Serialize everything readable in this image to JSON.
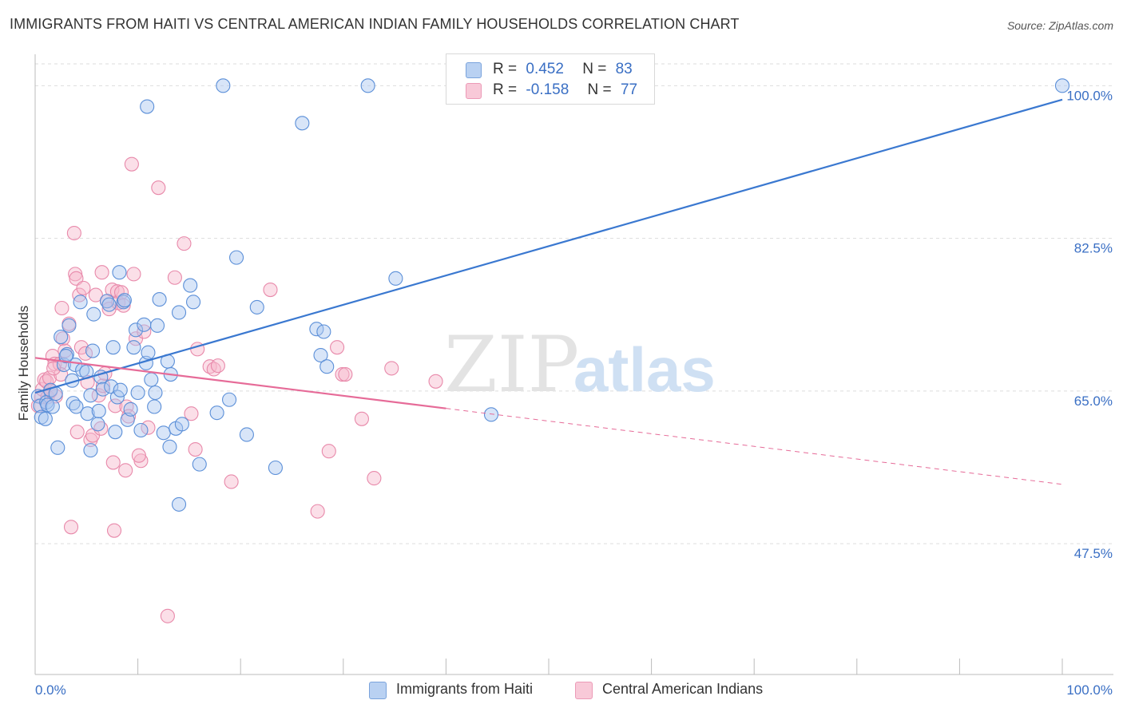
{
  "title": "IMMIGRANTS FROM HAITI VS CENTRAL AMERICAN INDIAN FAMILY HOUSEHOLDS CORRELATION CHART",
  "source": "Source: ZipAtlas.com",
  "watermark": {
    "zip": "ZIP",
    "atlas": "atlas"
  },
  "colors": {
    "blue": "#3a78d0",
    "blue_fill": "#a9c6ef",
    "pink": "#e66b98",
    "pink_fill": "#f6b9cd",
    "grid": "#dddddd",
    "tick_label": "#3a6fc4"
  },
  "stats": {
    "blue": {
      "r_label": "R =",
      "r_value": "0.452",
      "n_label": "N =",
      "n_value": "83"
    },
    "pink": {
      "r_label": "R =",
      "r_value": "-0.158",
      "n_label": "N =",
      "n_value": "77"
    }
  },
  "legend": {
    "blue": "Immigrants from Haiti",
    "pink": "Central American Indians"
  },
  "chart_data": {
    "type": "scatter",
    "title": "IMMIGRANTS FROM HAITI VS CENTRAL AMERICAN INDIAN FAMILY HOUSEHOLDS CORRELATION CHART",
    "xlabel": "",
    "ylabel": "Family Households",
    "xlim": [
      0,
      100
    ],
    "ylim": [
      32.5,
      102.5
    ],
    "x_tick_labels": {
      "left": "0.0%",
      "right": "100.0%"
    },
    "y_ticks": [
      {
        "value": 100,
        "label": "100.0%"
      },
      {
        "value": 82.5,
        "label": "82.5%"
      },
      {
        "value": 65,
        "label": "65.0%"
      },
      {
        "value": 47.5,
        "label": "47.5%"
      }
    ],
    "series": [
      {
        "name": "Immigrants from Haiti",
        "color": "#3a78d0",
        "R": 0.452,
        "N": 83,
        "trend": {
          "x": [
            0,
            100
          ],
          "y": [
            64.8,
            98.4
          ],
          "style": "solid"
        },
        "points": [
          [
            0.3,
            64.4
          ],
          [
            0.5,
            63.3
          ],
          [
            0.6,
            62.0
          ],
          [
            1.0,
            61.8
          ],
          [
            1.1,
            63.7
          ],
          [
            1.2,
            63.4
          ],
          [
            1.5,
            65.1
          ],
          [
            1.7,
            63.2
          ],
          [
            2.0,
            64.7
          ],
          [
            2.2,
            58.5
          ],
          [
            2.5,
            71.2
          ],
          [
            2.8,
            68.0
          ],
          [
            3.1,
            69.2
          ],
          [
            3.3,
            72.5
          ],
          [
            3.6,
            66.2
          ],
          [
            3.7,
            63.6
          ],
          [
            3.9,
            68.0
          ],
          [
            4.0,
            63.2
          ],
          [
            4.4,
            75.2
          ],
          [
            4.6,
            67.4
          ],
          [
            5.0,
            67.2
          ],
          [
            5.1,
            62.4
          ],
          [
            5.4,
            64.5
          ],
          [
            5.6,
            69.6
          ],
          [
            5.7,
            73.8
          ],
          [
            6.1,
            61.2
          ],
          [
            6.2,
            62.7
          ],
          [
            6.4,
            66.6
          ],
          [
            6.6,
            65.2
          ],
          [
            7.0,
            75.3
          ],
          [
            7.2,
            74.9
          ],
          [
            7.4,
            65.5
          ],
          [
            7.6,
            70.0
          ],
          [
            7.8,
            60.3
          ],
          [
            8.0,
            64.3
          ],
          [
            8.2,
            78.6
          ],
          [
            8.3,
            65.1
          ],
          [
            8.6,
            75.2
          ],
          [
            8.7,
            75.4
          ],
          [
            9.0,
            61.7
          ],
          [
            9.3,
            62.9
          ],
          [
            9.6,
            70.0
          ],
          [
            9.8,
            72.0
          ],
          [
            10.0,
            64.8
          ],
          [
            10.3,
            60.5
          ],
          [
            10.6,
            72.6
          ],
          [
            10.8,
            68.2
          ],
          [
            11.0,
            69.4
          ],
          [
            11.3,
            66.3
          ],
          [
            11.6,
            63.2
          ],
          [
            11.7,
            64.8
          ],
          [
            11.9,
            72.5
          ],
          [
            12.1,
            75.5
          ],
          [
            12.5,
            60.2
          ],
          [
            12.9,
            68.4
          ],
          [
            13.1,
            58.6
          ],
          [
            13.2,
            66.9
          ],
          [
            13.7,
            60.7
          ],
          [
            14.0,
            74.0
          ],
          [
            14.3,
            61.2
          ],
          [
            15.1,
            77.1
          ],
          [
            15.4,
            75.2
          ],
          [
            16.0,
            56.6
          ],
          [
            17.7,
            62.5
          ],
          [
            18.9,
            64.0
          ],
          [
            19.6,
            80.3
          ],
          [
            20.6,
            60.0
          ],
          [
            21.6,
            74.6
          ],
          [
            23.4,
            56.2
          ],
          [
            27.4,
            72.1
          ],
          [
            27.8,
            69.1
          ],
          [
            28.1,
            71.8
          ],
          [
            28.4,
            67.8
          ],
          [
            35.1,
            77.9
          ],
          [
            44.4,
            62.3
          ],
          [
            10.9,
            97.6
          ],
          [
            14.0,
            52.0
          ],
          [
            18.3,
            100.0
          ],
          [
            26.0,
            95.7
          ],
          [
            32.4,
            100.0
          ],
          [
            100.0,
            100.0
          ],
          [
            5.4,
            58.2
          ],
          [
            3.0,
            69.0
          ]
        ]
      },
      {
        "name": "Central American Indians",
        "color": "#e66b98",
        "R": -0.158,
        "N": 77,
        "trend": {
          "x": [
            0,
            100
          ],
          "y": [
            68.8,
            54.3
          ],
          "style": "solid-to-44-then-dashed"
        },
        "points": [
          [
            0.3,
            63.3
          ],
          [
            0.6,
            64.3
          ],
          [
            0.7,
            65.2
          ],
          [
            0.9,
            66.3
          ],
          [
            1.1,
            66.1
          ],
          [
            1.2,
            64.3
          ],
          [
            1.4,
            66.5
          ],
          [
            1.7,
            69.0
          ],
          [
            1.9,
            68.1
          ],
          [
            2.0,
            64.4
          ],
          [
            2.4,
            68.1
          ],
          [
            2.5,
            66.9
          ],
          [
            2.6,
            74.5
          ],
          [
            2.7,
            71.0
          ],
          [
            3.3,
            72.7
          ],
          [
            3.5,
            49.4
          ],
          [
            3.8,
            83.1
          ],
          [
            3.9,
            78.4
          ],
          [
            4.0,
            77.9
          ],
          [
            4.3,
            76.0
          ],
          [
            4.5,
            70.0
          ],
          [
            4.7,
            76.8
          ],
          [
            4.9,
            69.3
          ],
          [
            5.1,
            66.0
          ],
          [
            5.4,
            59.4
          ],
          [
            5.6,
            59.9
          ],
          [
            5.9,
            76.0
          ],
          [
            6.2,
            64.5
          ],
          [
            6.4,
            60.7
          ],
          [
            6.5,
            78.6
          ],
          [
            6.6,
            65.6
          ],
          [
            7.0,
            75.3
          ],
          [
            7.2,
            74.4
          ],
          [
            7.5,
            76.6
          ],
          [
            7.6,
            56.8
          ],
          [
            7.7,
            49.0
          ],
          [
            7.8,
            63.3
          ],
          [
            8.0,
            76.4
          ],
          [
            8.1,
            75.1
          ],
          [
            8.4,
            76.3
          ],
          [
            8.6,
            74.8
          ],
          [
            8.9,
            63.2
          ],
          [
            9.1,
            62.1
          ],
          [
            9.4,
            91.0
          ],
          [
            9.6,
            78.4
          ],
          [
            9.8,
            71.0
          ],
          [
            10.3,
            57.0
          ],
          [
            10.6,
            71.8
          ],
          [
            11.0,
            60.8
          ],
          [
            12.0,
            88.3
          ],
          [
            12.9,
            39.2
          ],
          [
            13.6,
            78.0
          ],
          [
            14.5,
            81.9
          ],
          [
            15.2,
            62.4
          ],
          [
            15.6,
            58.3
          ],
          [
            15.8,
            69.8
          ],
          [
            17.0,
            67.8
          ],
          [
            17.4,
            67.5
          ],
          [
            17.8,
            67.9
          ],
          [
            19.1,
            54.6
          ],
          [
            22.9,
            76.6
          ],
          [
            27.5,
            51.2
          ],
          [
            28.6,
            58.1
          ],
          [
            29.4,
            70.0
          ],
          [
            29.9,
            66.9
          ],
          [
            30.2,
            66.9
          ],
          [
            31.8,
            61.8
          ],
          [
            33.0,
            55.0
          ],
          [
            34.7,
            67.6
          ],
          [
            39.0,
            66.1
          ],
          [
            1.5,
            65.0
          ],
          [
            2.9,
            69.6
          ],
          [
            6.8,
            67.0
          ],
          [
            10.1,
            57.6
          ],
          [
            8.8,
            55.9
          ],
          [
            1.8,
            67.6
          ],
          [
            4.1,
            60.3
          ]
        ]
      }
    ]
  }
}
